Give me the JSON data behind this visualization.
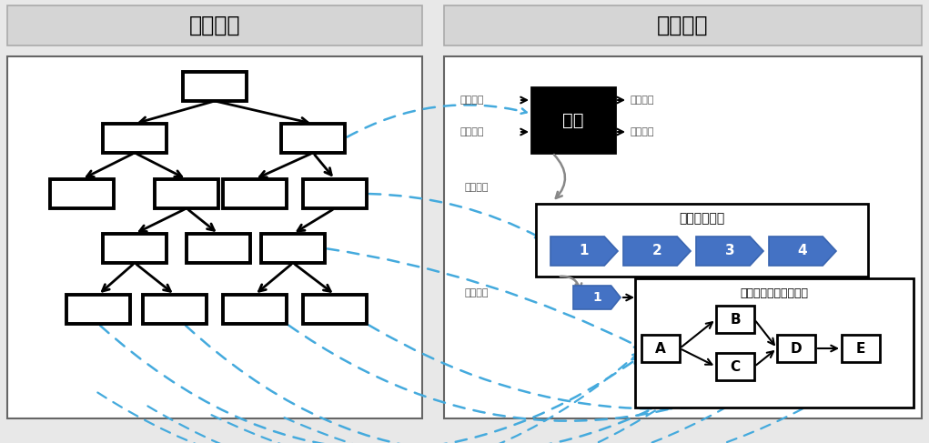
{
  "title_left": "静态逻辑",
  "title_right": "动态逻辑",
  "fig_bg": "#e8e8e8",
  "dashed_color": "#44aadd",
  "stage_labels": [
    "1",
    "2",
    "3",
    "4"
  ],
  "shishi_label": "事物",
  "phase_title": "事物发展阶段",
  "step_title": "某个阶段详细活动步骤",
  "label_waibushuru": "外部输入",
  "label_shijianfaji": "事件触发",
  "label_xingwetezheng": "行为特征",
  "label_zhuangtaibianhua": "状态变化",
  "label_daikaiheige": "打开黑盒",
  "label_zhucengfenjie": "逐层分解",
  "step_nodes": [
    "A",
    "B",
    "C",
    "D",
    "E"
  ]
}
